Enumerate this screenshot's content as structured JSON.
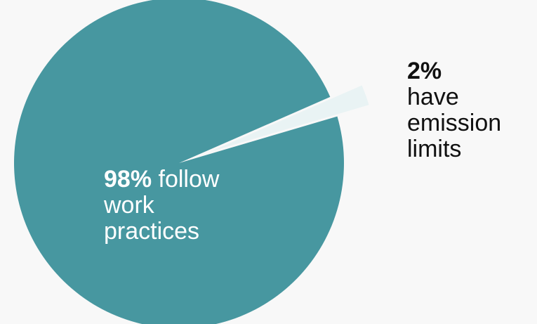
{
  "colors": {
    "background": "#f8f8f8",
    "major_slice": "#4797a0",
    "minor_slice": "#e9f3f4"
  },
  "chart_data": {
    "type": "pie",
    "slices": [
      {
        "label": "follow work practices",
        "value": 98,
        "color": "#4797a0"
      },
      {
        "label": "have emission limits",
        "value": 2,
        "color": "#e9f3f4",
        "exploded": true
      }
    ],
    "title": ""
  },
  "labels": {
    "major": {
      "pct": "98%",
      "line1_rest": " follow",
      "line2": "work",
      "line3": "practices"
    },
    "minor": {
      "pct": "2%",
      "line2": "have",
      "line3": "emission",
      "line4": "limits"
    }
  }
}
